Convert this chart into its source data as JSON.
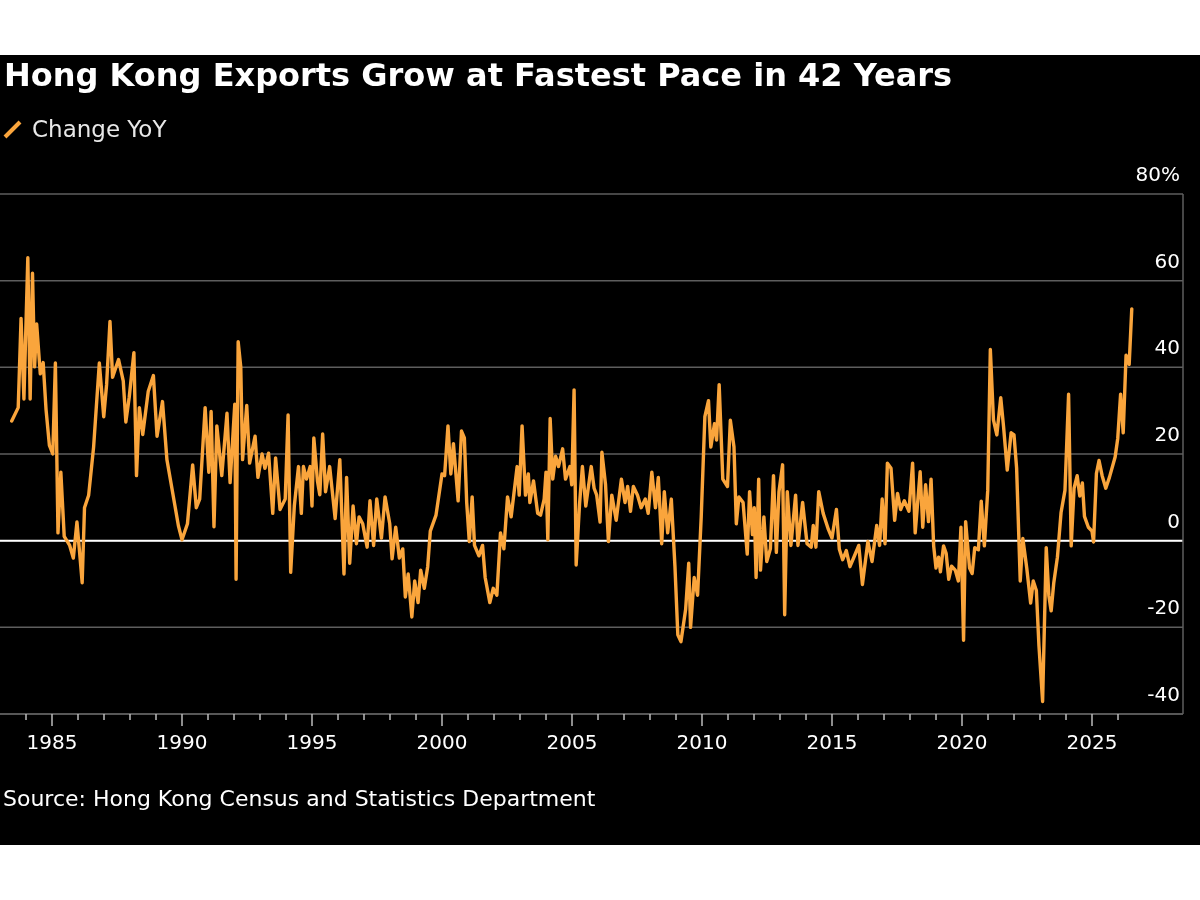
{
  "chart_data": {
    "type": "line",
    "title": "Hong Kong Exports Grow at Fastest Pace in 42 Years",
    "annotations": [
      "Source: Hong Kong Census and Statistics Department"
    ],
    "x": [
      1983.45,
      1983.7,
      1983.81,
      1983.92,
      1984.07,
      1984.16,
      1984.25,
      1984.33,
      1984.41,
      1984.55,
      1984.66,
      1984.77,
      1984.9,
      1985.03,
      1985.13,
      1985.23,
      1985.34,
      1985.47,
      1985.68,
      1985.82,
      1985.96,
      1986.05,
      1986.16,
      1986.25,
      1986.41,
      1986.6,
      1986.82,
      1986.99,
      1987.1,
      1987.23,
      1987.33,
      1987.56,
      1987.74,
      1987.84,
      1987.97,
      1988.15,
      1988.25,
      1988.36,
      1988.49,
      1988.7,
      1988.9,
      1989.04,
      1989.25,
      1989.42,
      1989.73,
      1989.86,
      1990.0,
      1990.21,
      1990.41,
      1990.55,
      1990.68,
      1990.89,
      1991.03,
      1991.12,
      1991.23,
      1991.34,
      1991.53,
      1991.73,
      1991.85,
      1992.03,
      1992.08,
      1992.16,
      1992.26,
      1992.33,
      1992.49,
      1992.6,
      1992.81,
      1992.92,
      1993.08,
      1993.19,
      1993.33,
      1993.49,
      1993.6,
      1993.77,
      1993.97,
      1994.08,
      1994.18,
      1994.32,
      1994.48,
      1994.59,
      1994.67,
      1994.79,
      1994.93,
      1995.0,
      1995.07,
      1995.21,
      1995.3,
      1995.41,
      1995.52,
      1995.68,
      1995.89,
      1996.07,
      1996.23,
      1996.33,
      1996.45,
      1996.58,
      1996.71,
      1996.81,
      1996.95,
      1997.12,
      1997.23,
      1997.37,
      1997.49,
      1997.67,
      1997.81,
      1997.99,
      1998.08,
      1998.22,
      1998.36,
      1998.49,
      1998.59,
      1998.7,
      1998.84,
      1998.95,
      1999.08,
      1999.18,
      1999.32,
      1999.45,
      1999.55,
      1999.77,
      2000.0,
      2000.1,
      2000.23,
      2000.34,
      2000.44,
      2000.62,
      2000.75,
      2000.86,
      2000.95,
      2001.05,
      2001.16,
      2001.25,
      2001.42,
      2001.56,
      2001.66,
      2001.84,
      2001.97,
      2002.11,
      2002.25,
      2002.38,
      2002.52,
      2002.66,
      2002.89,
      2002.97,
      2003.08,
      2003.21,
      2003.32,
      2003.38,
      2003.52,
      2003.68,
      2003.79,
      2003.93,
      2004.0,
      2004.07,
      2004.16,
      2004.26,
      2004.37,
      2004.48,
      2004.64,
      2004.75,
      2004.92,
      2004.99,
      2005.08,
      2005.16,
      2005.29,
      2005.4,
      2005.53,
      2005.74,
      2005.85,
      2005.95,
      2006.08,
      2006.15,
      2006.29,
      2006.4,
      2006.53,
      2006.7,
      2006.9,
      2007.04,
      2007.14,
      2007.25,
      2007.36,
      2007.52,
      2007.66,
      2007.82,
      2007.93,
      2008.07,
      2008.21,
      2008.32,
      2008.45,
      2008.55,
      2008.68,
      2008.82,
      2008.96,
      2009.07,
      2009.19,
      2009.37,
      2009.49,
      2009.56,
      2009.7,
      2009.83,
      2009.97,
      2010.11,
      2010.25,
      2010.34,
      2010.48,
      2010.56,
      2010.66,
      2010.8,
      2010.98,
      2011.09,
      2011.23,
      2011.32,
      2011.42,
      2011.58,
      2011.74,
      2011.83,
      2011.94,
      2012.01,
      2012.08,
      2012.18,
      2012.25,
      2012.38,
      2012.49,
      2012.63,
      2012.75,
      2012.86,
      2012.96,
      2013.1,
      2013.18,
      2013.28,
      2013.42,
      2013.6,
      2013.69,
      2013.87,
      2014.04,
      2014.2,
      2014.28,
      2014.38,
      2014.49,
      2014.66,
      2014.86,
      2015.0,
      2015.17,
      2015.28,
      2015.41,
      2015.55,
      2015.69,
      2015.83,
      2016.03,
      2016.17,
      2016.38,
      2016.54,
      2016.72,
      2016.83,
      2016.93,
      2017.04,
      2017.13,
      2017.27,
      2017.41,
      2017.52,
      2017.64,
      2017.78,
      2017.96,
      2018.1,
      2018.2,
      2018.39,
      2018.49,
      2018.6,
      2018.71,
      2018.81,
      2018.91,
      2019.0,
      2019.1,
      2019.17,
      2019.29,
      2019.39,
      2019.49,
      2019.6,
      2019.74,
      2019.86,
      2019.96,
      2020.06,
      2020.14,
      2020.29,
      2020.39,
      2020.49,
      2020.63,
      2020.74,
      2020.86,
      2020.99,
      2021.09,
      2021.21,
      2021.34,
      2021.49,
      2021.6,
      2021.74,
      2021.89,
      2022.0,
      2022.1,
      2022.24,
      2022.34,
      2022.49,
      2022.64,
      2022.74,
      2022.86,
      2022.96,
      2023.1,
      2023.24,
      2023.34,
      2023.43,
      2023.53,
      2023.67,
      2023.81,
      2023.96,
      2024.1,
      2024.2,
      2024.31,
      2024.43,
      2024.53,
      2024.63,
      2024.71,
      2024.86,
      2025.0,
      2025.06,
      2025.17,
      2025.27,
      2025.39,
      2025.53,
      2025.67,
      2025.89,
      2025.99,
      2026.1,
      2026.2,
      2026.31,
      2026.43,
      2026.53
    ],
    "series": [
      {
        "name": "Change YoY",
        "color": "#faa53c",
        "values": [
          27.6,
          30.7,
          51.3,
          32.7,
          65.3,
          32.7,
          61.7,
          40.1,
          50.0,
          38.5,
          41.1,
          30.3,
          22.0,
          20.0,
          41.0,
          1.8,
          15.8,
          1.0,
          -1.1,
          -4.0,
          4.3,
          -1.9,
          -9.7,
          7.6,
          10.5,
          21.6,
          41.0,
          28.6,
          36.0,
          50.6,
          37.7,
          41.8,
          36.9,
          27.4,
          33.1,
          43.4,
          15.0,
          30.7,
          24.5,
          34.4,
          38.1,
          24.1,
          32.1,
          18.7,
          8.0,
          3.5,
          0.2,
          3.9,
          17.5,
          7.6,
          9.6,
          30.7,
          15.8,
          29.8,
          3.2,
          26.5,
          15.0,
          29.4,
          13.4,
          31.5,
          -8.9,
          45.9,
          40.1,
          18.7,
          31.2,
          17.9,
          24.1,
          14.6,
          20.0,
          16.7,
          20.2,
          6.3,
          19.1,
          7.2,
          9.6,
          29.0,
          -7.3,
          8.0,
          17.1,
          6.3,
          17.1,
          14.2,
          17.1,
          8.0,
          23.7,
          13.8,
          10.6,
          24.6,
          11.3,
          17.1,
          5.1,
          18.7,
          -7.7,
          14.6,
          -5.2,
          8.0,
          -0.7,
          5.5,
          3.9,
          -1.5,
          9.2,
          -1.1,
          9.6,
          0.6,
          10.1,
          3.9,
          -4.2,
          3.1,
          -4.0,
          -1.9,
          -13.0,
          -7.7,
          -17.6,
          -9.3,
          -14.3,
          -6.8,
          -11.0,
          -6.0,
          2.2,
          5.9,
          15.4,
          15.0,
          26.5,
          15.4,
          22.4,
          9.2,
          25.3,
          23.7,
          8.8,
          -0.2,
          10.1,
          -1.1,
          -3.5,
          -1.1,
          -8.5,
          -14.3,
          -11.0,
          -12.6,
          1.8,
          -1.9,
          10.1,
          5.5,
          17.1,
          10.5,
          26.5,
          10.5,
          15.4,
          8.8,
          13.8,
          6.3,
          5.9,
          9.6,
          15.8,
          0.2,
          28.2,
          14.2,
          19.5,
          17.1,
          21.2,
          14.2,
          17.1,
          12.9,
          34.8,
          -5.6,
          8.4,
          17.1,
          8.0,
          17.1,
          12.1,
          10.5,
          4.3,
          20.4,
          12.9,
          -0.2,
          10.5,
          4.7,
          14.2,
          8.8,
          12.5,
          6.8,
          12.5,
          10.5,
          7.6,
          9.6,
          6.3,
          15.8,
          7.6,
          14.6,
          -0.7,
          11.3,
          1.8,
          9.6,
          -6.0,
          -21.7,
          -23.3,
          -15.9,
          -5.2,
          -20.0,
          -8.5,
          -12.6,
          5.5,
          28.6,
          32.3,
          21.6,
          27.0,
          23.2,
          36.0,
          14.2,
          12.5,
          27.8,
          21.6,
          3.9,
          10.1,
          8.8,
          -3.1,
          11.3,
          1.4,
          7.6,
          -8.5,
          14.2,
          -6.8,
          5.5,
          -4.8,
          -1.9,
          15.0,
          -2.7,
          11.3,
          17.5,
          -17.1,
          11.3,
          -1.1,
          10.5,
          -1.1,
          8.8,
          -0.7,
          -1.5,
          3.5,
          -1.5,
          11.3,
          6.3,
          2.6,
          0.6,
          7.2,
          -1.9,
          -4.4,
          -2.3,
          -6.0,
          -4.0,
          -1.1,
          -10.1,
          -0.2,
          -4.8,
          3.5,
          -1.1,
          9.6,
          -0.7,
          17.9,
          16.7,
          4.7,
          10.9,
          7.2,
          9.2,
          6.8,
          17.9,
          1.8,
          15.9,
          3.1,
          12.9,
          4.4,
          14.2,
          -1.2,
          -6.3,
          -3.8,
          -7.2,
          -1.2,
          -2.9,
          -8.9,
          -5.9,
          -6.8,
          -9.3,
          3.1,
          -23.0,
          4.4,
          -6.3,
          -7.6,
          -1.6,
          -2.1,
          9.1,
          -1.2,
          11.6,
          44.1,
          27.9,
          24.4,
          33.0,
          26.2,
          16.3,
          24.9,
          24.4,
          16.8,
          -9.3,
          0.5,
          -6.3,
          -14.4,
          -9.3,
          -11.5,
          -24.3,
          -37.1,
          -1.6,
          -12.7,
          -16.2,
          -9.7,
          -3.8,
          6.5,
          11.6,
          33.8,
          -1.2,
          12.1,
          15.0,
          10.3,
          13.3,
          5.6,
          3.1,
          2.2,
          -0.3,
          15.5,
          18.5,
          15.0,
          12.1,
          14.6,
          19.3,
          23.6,
          33.8,
          24.9,
          42.8,
          40.7,
          53.5
        ]
      }
    ],
    "xlim": [
      1983,
      2028.5
    ],
    "xticks": [
      {
        "value": 1984,
        "label": null
      },
      1985,
      {
        "value": 1986,
        "label": null
      },
      {
        "value": 1987,
        "label": null
      },
      {
        "value": 1988,
        "label": null
      },
      {
        "value": 1989,
        "label": null
      },
      1990,
      {
        "value": 1991,
        "label": null
      },
      {
        "value": 1992,
        "label": null
      },
      {
        "value": 1993,
        "label": null
      },
      {
        "value": 1994,
        "label": null
      },
      1995,
      {
        "value": 1996,
        "label": null
      },
      {
        "value": 1997,
        "label": null
      },
      {
        "value": 1998,
        "label": null
      },
      {
        "value": 1999,
        "label": null
      },
      2000,
      {
        "value": 2001,
        "label": null
      },
      {
        "value": 2002,
        "label": null
      },
      {
        "value": 2003,
        "label": null
      },
      {
        "value": 2004,
        "label": null
      },
      2005,
      {
        "value": 2006,
        "label": null
      },
      {
        "value": 2007,
        "label": null
      },
      {
        "value": 2008,
        "label": null
      },
      {
        "value": 2009,
        "label": null
      },
      2010,
      {
        "value": 2011,
        "label": null
      },
      {
        "value": 2012,
        "label": null
      },
      {
        "value": 2013,
        "label": null
      },
      {
        "value": 2014,
        "label": null
      },
      2015,
      {
        "value": 2016,
        "label": null
      },
      {
        "value": 2017,
        "label": null
      },
      {
        "value": 2018,
        "label": null
      },
      {
        "value": 2019,
        "label": null
      },
      2020,
      {
        "value": 2021,
        "label": null
      },
      {
        "value": 2022,
        "label": null
      },
      {
        "value": 2023,
        "label": null
      },
      {
        "value": 2024,
        "label": null
      },
      2025,
      {
        "value": 2026,
        "label": null
      }
    ],
    "ylim": [
      -40,
      80
    ],
    "yticks": [
      -40,
      -20,
      0,
      20,
      40,
      60,
      {
        "value": 80,
        "label": "80%"
      }
    ],
    "ref_lines": [
      {
        "axis": "y",
        "value": 0,
        "color": "#ffffff"
      }
    ],
    "grid": "y",
    "legend": "top left",
    "marker": "none",
    "line_style": "solid"
  }
}
